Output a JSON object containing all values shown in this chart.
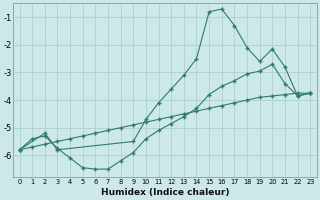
{
  "xlabel": "Humidex (Indice chaleur)",
  "background_color": "#cce8e8",
  "grid_color": "#aacccc",
  "line_color": "#2e7b6e",
  "xlim": [
    -0.5,
    23.5
  ],
  "ylim": [
    -6.8,
    -0.5
  ],
  "yticks": [
    -6,
    -5,
    -4,
    -3,
    -2,
    -1
  ],
  "line_straight_x": [
    0,
    1,
    2,
    3,
    4,
    5,
    6,
    7,
    8,
    9,
    10,
    11,
    12,
    13,
    14,
    15,
    16,
    17,
    18,
    19,
    20,
    21,
    22,
    23
  ],
  "line_straight_y": [
    -5.8,
    -5.7,
    -5.6,
    -5.5,
    -5.4,
    -5.3,
    -5.2,
    -5.1,
    -5.0,
    -4.9,
    -4.8,
    -4.7,
    -4.6,
    -4.5,
    -4.4,
    -4.3,
    -4.2,
    -4.1,
    -4.0,
    -3.9,
    -3.85,
    -3.8,
    -3.75,
    -3.75
  ],
  "line_peak_x": [
    0,
    2,
    3,
    9,
    10,
    11,
    12,
    13,
    14,
    15,
    16,
    17,
    18,
    19,
    20,
    21,
    22,
    23
  ],
  "line_peak_y": [
    -5.8,
    -5.2,
    -5.8,
    -5.5,
    -4.7,
    -4.1,
    -3.6,
    -3.1,
    -2.5,
    -0.8,
    -0.7,
    -1.3,
    -2.1,
    -2.6,
    -2.15,
    -2.8,
    -3.85,
    -3.75
  ],
  "line_bottom_x": [
    0,
    1,
    2,
    3,
    4,
    5,
    6,
    7,
    8,
    9,
    10,
    11,
    12,
    13,
    14,
    15,
    16,
    17,
    18,
    19,
    20,
    21,
    22,
    23
  ],
  "line_bottom_y": [
    -5.8,
    -5.4,
    -5.3,
    -5.75,
    -6.1,
    -6.45,
    -6.5,
    -6.5,
    -6.2,
    -5.9,
    -5.4,
    -5.1,
    -4.85,
    -4.6,
    -4.3,
    -3.8,
    -3.5,
    -3.3,
    -3.05,
    -2.95,
    -2.7,
    -3.4,
    -3.85,
    -3.75
  ]
}
